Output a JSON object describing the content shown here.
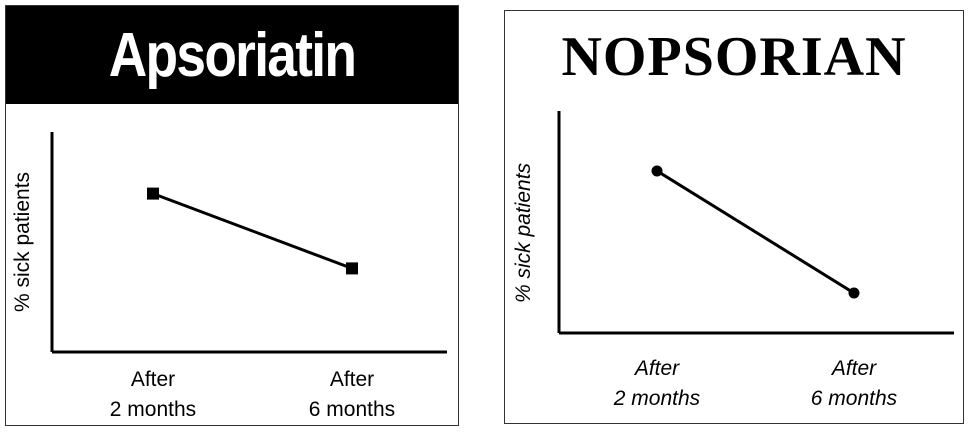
{
  "chart_data": [
    {
      "type": "line",
      "title": "Apsoriatin",
      "xlabel": "",
      "ylabel": "% sick patients",
      "categories": [
        [
          "After",
          "2 months"
        ],
        [
          "After",
          "6 months"
        ]
      ],
      "series": [
        {
          "values": [
            72,
            38
          ],
          "marker": "square",
          "color": "#000000"
        }
      ],
      "ylim": [
        0,
        100
      ],
      "title_style": "white bold sans-serif on black bar",
      "grid": false
    },
    {
      "type": "line",
      "title": "NOPSORIAN",
      "xlabel": "",
      "ylabel": "% sick patients",
      "categories": [
        [
          "After",
          "2 months"
        ],
        [
          "After",
          "6 months"
        ]
      ],
      "series": [
        {
          "values": [
            73,
            18
          ],
          "marker": "circle",
          "color": "#000000"
        }
      ],
      "ylim": [
        0,
        100
      ],
      "title_style": "black bold serif on white",
      "grid": false
    }
  ]
}
